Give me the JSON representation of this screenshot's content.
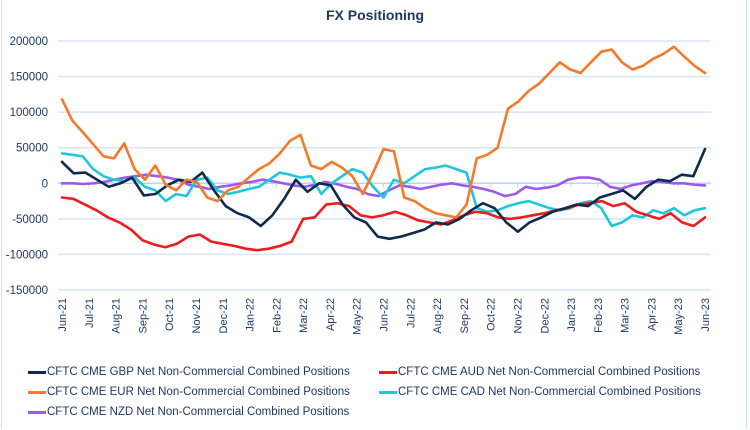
{
  "chart_data": {
    "type": "line",
    "title": "FX Positioning",
    "xlabel": "",
    "ylabel": "",
    "ylim": [
      -150000,
      200000
    ],
    "yticks": [
      200000,
      150000,
      100000,
      50000,
      0,
      -50000,
      -100000,
      -150000
    ],
    "ytick_labels": [
      "200000",
      "150000",
      "100000",
      "50000",
      "0",
      "-50000",
      "-100000",
      "-150000"
    ],
    "grid": true,
    "legend_position": "bottom",
    "xtick_labels": [
      "Jun-21",
      "Jul-21",
      "Aug-21",
      "Sep-21",
      "Oct-21",
      "Nov-21",
      "Dec-21",
      "Jan-22",
      "Feb-22",
      "Mar-22",
      "Apr-22",
      "May-22",
      "Jun-22",
      "Jul-22",
      "Aug-22",
      "Sep-22",
      "Oct-22",
      "Nov-22",
      "Dec-22",
      "Jan-23",
      "Feb-23",
      "Mar-23",
      "Apr-23",
      "May-23",
      "Jun-23"
    ],
    "x_frequency": "biweekly",
    "series": [
      {
        "name": "CFTC CME GBP Net Non-Commercial Combined Positions",
        "color": "#0d2a4f",
        "values": [
          30000,
          14000,
          15000,
          5000,
          -5000,
          0,
          8000,
          -17000,
          -15000,
          -3000,
          5000,
          2000,
          15000,
          -10000,
          -32000,
          -42000,
          -48000,
          -60000,
          -45000,
          -22000,
          5000,
          -12000,
          0,
          -3000,
          -30000,
          -48000,
          -55000,
          -75000,
          -78000,
          -75000,
          -70000,
          -65000,
          -55000,
          -58000,
          -50000,
          -38000,
          -28000,
          -35000,
          -55000,
          -68000,
          -55000,
          -48000,
          -40000,
          -35000,
          -30000,
          -32000,
          -20000,
          -15000,
          -10000,
          -22000,
          -5000,
          5000,
          3000,
          12000,
          10000,
          48000
        ]
      },
      {
        "name": "CFTC CME AUD Net Non-Commercial Combined Positions",
        "color": "#ee1c1c",
        "values": [
          -20000,
          -22000,
          -30000,
          -38000,
          -48000,
          -55000,
          -65000,
          -80000,
          -86000,
          -90000,
          -85000,
          -75000,
          -72000,
          -82000,
          -85000,
          -88000,
          -92000,
          -94000,
          -92000,
          -88000,
          -82000,
          -50000,
          -48000,
          -30000,
          -28000,
          -32000,
          -45000,
          -48000,
          -45000,
          -40000,
          -45000,
          -52000,
          -55000,
          -58000,
          -52000,
          -45000,
          -40000,
          -42000,
          -48000,
          -50000,
          -48000,
          -45000,
          -42000,
          -38000,
          -35000,
          -30000,
          -28000,
          -25000,
          -32000,
          -28000,
          -40000,
          -45000,
          -50000,
          -42000,
          -55000,
          -60000,
          -48000
        ]
      },
      {
        "name": "CFTC CME EUR Net Non-Commercial Combined Positions",
        "color": "#f47a2a",
        "values": [
          118000,
          88000,
          72000,
          55000,
          38000,
          35000,
          56000,
          20000,
          5000,
          25000,
          -2000,
          -10000,
          5000,
          2000,
          -20000,
          -25000,
          -10000,
          -5000,
          8000,
          20000,
          28000,
          42000,
          60000,
          68000,
          25000,
          20000,
          30000,
          22000,
          10000,
          -15000,
          15000,
          48000,
          45000,
          -20000,
          -25000,
          -35000,
          -42000,
          -45000,
          -48000,
          -30000,
          35000,
          40000,
          50000,
          105000,
          115000,
          130000,
          140000,
          155000,
          170000,
          160000,
          155000,
          170000,
          185000,
          188000,
          170000,
          160000,
          165000,
          175000,
          182000,
          192000,
          178000,
          165000,
          155000
        ]
      },
      {
        "name": "CFTC CME CAD Net Non-Commercial Combined Positions",
        "color": "#1ec8dc",
        "values": [
          42000,
          40000,
          38000,
          20000,
          10000,
          5000,
          3000,
          8000,
          -5000,
          -10000,
          -25000,
          -15000,
          -18000,
          5000,
          8000,
          -10000,
          -15000,
          -12000,
          -8000,
          -5000,
          5000,
          15000,
          12000,
          8000,
          10000,
          -15000,
          0,
          10000,
          20000,
          15000,
          -5000,
          -20000,
          5000,
          0,
          10000,
          20000,
          22000,
          25000,
          20000,
          15000,
          -35000,
          -40000,
          -38000,
          -32000,
          -28000,
          -25000,
          -30000,
          -35000,
          -38000,
          -35000,
          -28000,
          -25000,
          -35000,
          -60000,
          -55000,
          -45000,
          -48000,
          -38000,
          -42000,
          -35000,
          -45000,
          -38000,
          -35000
        ]
      },
      {
        "name": "CFTC CME NZD Net Non-Commercial Combined Positions",
        "color": "#9b59f0",
        "values": [
          0,
          0,
          -1000,
          0,
          2000,
          5000,
          8000,
          10000,
          12000,
          10000,
          8000,
          5000,
          -2000,
          -5000,
          -8000,
          -5000,
          -3000,
          0,
          2000,
          5000,
          3000,
          0,
          -3000,
          -5000,
          -2000,
          2000,
          -1000,
          -5000,
          -8000,
          -15000,
          -18000,
          -10000,
          -3000,
          -5000,
          -8000,
          -5000,
          -2000,
          0,
          -3000,
          -5000,
          -8000,
          -12000,
          -18000,
          -15000,
          -5000,
          -8000,
          -6000,
          -3000,
          5000,
          8000,
          8000,
          5000,
          -5000,
          -8000,
          -3000,
          0,
          3000,
          2000,
          0,
          0,
          -2000,
          -3000
        ]
      }
    ]
  }
}
